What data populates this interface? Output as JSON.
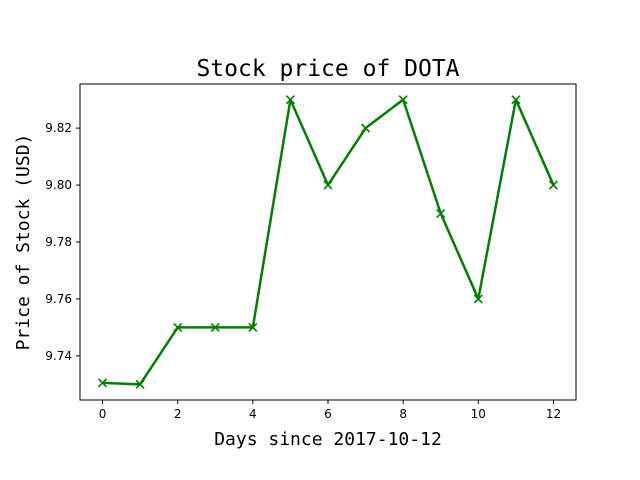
{
  "chart_data": {
    "type": "line",
    "title": "Stock price of DOTA",
    "xlabel": "Days since 2017-10-12",
    "ylabel": "Price of Stock (USD)",
    "x": [
      0,
      1,
      2,
      3,
      4,
      5,
      6,
      7,
      8,
      9,
      10,
      11,
      12
    ],
    "series": [
      {
        "values": [
          9.7305,
          9.73,
          9.75,
          9.75,
          9.75,
          9.83,
          9.8,
          9.82,
          9.83,
          9.79,
          9.76,
          9.83,
          9.8
        ],
        "color": "#008000",
        "marker": "x"
      }
    ],
    "xlim": [
      -0.6,
      12.6
    ],
    "ylim": [
      9.7245,
      9.8355
    ],
    "xticks": [
      0,
      2,
      4,
      6,
      8,
      10,
      12
    ],
    "xtick_labels": [
      "0",
      "2",
      "4",
      "6",
      "8",
      "10",
      "12"
    ],
    "yticks": [
      9.74,
      9.76,
      9.78,
      9.8,
      9.82
    ],
    "ytick_labels": [
      "9.74",
      "9.76",
      "9.78",
      "9.80",
      "9.82"
    ],
    "grid": false,
    "legend": false
  }
}
